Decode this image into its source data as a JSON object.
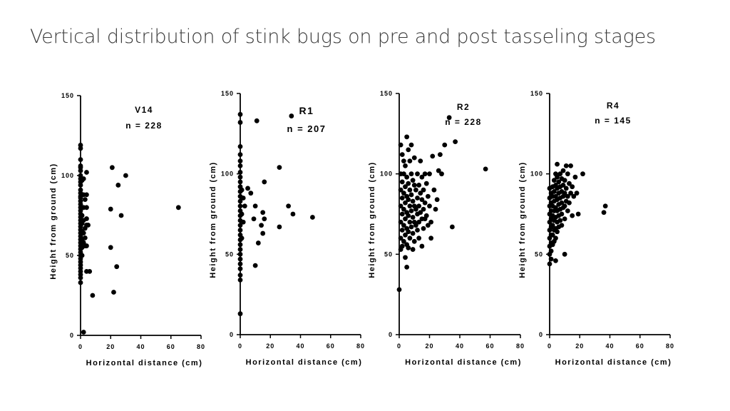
{
  "title": "Vertical distribution of stink bugs on pre and post tasseling stages",
  "chart_data": [
    {
      "type": "scatter",
      "label": "V14",
      "n_label": "n = 228",
      "xlabel": "Horizontal distance (cm)",
      "ylabel": "Height from ground (cm)",
      "xlim": [
        0,
        80
      ],
      "ylim": [
        0,
        150
      ],
      "xticks": [
        0,
        20,
        40,
        60,
        80
      ],
      "yticks": [
        0,
        50,
        100,
        150
      ],
      "grid": false,
      "legend": false,
      "color": "#000000",
      "points": [
        [
          0,
          119
        ],
        [
          0,
          117
        ],
        [
          0,
          110
        ],
        [
          0,
          106
        ],
        [
          0,
          105
        ],
        [
          0,
          103
        ],
        [
          0,
          100
        ],
        [
          0,
          98
        ],
        [
          0,
          96
        ],
        [
          0,
          94
        ],
        [
          0,
          91
        ],
        [
          0,
          89
        ],
        [
          0,
          87
        ],
        [
          0,
          86
        ],
        [
          0,
          84
        ],
        [
          0,
          82
        ],
        [
          0,
          80
        ],
        [
          0,
          78
        ],
        [
          0,
          76
        ],
        [
          0,
          74
        ],
        [
          0,
          72
        ],
        [
          0,
          70
        ],
        [
          0,
          68
        ],
        [
          0,
          66
        ],
        [
          0,
          64
        ],
        [
          0,
          62
        ],
        [
          0,
          60
        ],
        [
          0,
          58
        ],
        [
          0,
          56
        ],
        [
          0,
          54
        ],
        [
          0,
          52
        ],
        [
          0,
          50
        ],
        [
          0,
          48
        ],
        [
          0,
          46
        ],
        [
          0,
          44
        ],
        [
          0,
          42
        ],
        [
          0,
          40
        ],
        [
          0,
          38
        ],
        [
          0,
          36
        ],
        [
          0,
          33
        ],
        [
          1,
          97
        ],
        [
          1,
          75
        ],
        [
          1,
          70
        ],
        [
          1,
          65
        ],
        [
          1,
          60
        ],
        [
          1,
          55
        ],
        [
          1,
          50
        ],
        [
          2,
          98
        ],
        [
          2,
          88
        ],
        [
          2,
          80
        ],
        [
          2,
          72
        ],
        [
          2,
          64
        ],
        [
          2,
          58
        ],
        [
          3,
          85
        ],
        [
          3,
          67
        ],
        [
          3,
          61
        ],
        [
          3,
          56
        ],
        [
          4,
          102
        ],
        [
          4,
          88
        ],
        [
          4,
          80
        ],
        [
          4,
          73
        ],
        [
          4,
          69
        ],
        [
          4,
          56
        ],
        [
          4,
          40
        ],
        [
          5,
          69
        ],
        [
          6,
          40
        ],
        [
          8,
          25
        ],
        [
          2,
          2
        ],
        [
          20,
          79
        ],
        [
          20,
          55
        ],
        [
          21,
          105
        ],
        [
          22,
          27
        ],
        [
          24,
          43
        ],
        [
          25,
          94
        ],
        [
          27,
          75
        ],
        [
          30,
          100
        ],
        [
          65,
          80
        ]
      ]
    },
    {
      "type": "scatter",
      "label": "R1",
      "n_label": "n = 207",
      "xlabel": "Horizontal distance (cm)",
      "ylabel": "Height from ground (cm)",
      "xlim": [
        0,
        80
      ],
      "ylim": [
        0,
        150
      ],
      "xticks": [
        0,
        20,
        40,
        60,
        80
      ],
      "yticks": [
        0,
        50,
        100,
        150
      ],
      "grid": false,
      "legend": false,
      "color": "#000000",
      "points": [
        [
          0,
          137
        ],
        [
          0,
          132
        ],
        [
          0,
          117
        ],
        [
          0,
          112
        ],
        [
          0,
          108
        ],
        [
          0,
          105
        ],
        [
          0,
          101
        ],
        [
          0,
          98
        ],
        [
          0,
          95
        ],
        [
          0,
          92
        ],
        [
          0,
          89
        ],
        [
          0,
          86
        ],
        [
          0,
          83
        ],
        [
          0,
          80
        ],
        [
          0,
          77
        ],
        [
          0,
          74
        ],
        [
          0,
          71
        ],
        [
          0,
          68
        ],
        [
          0,
          65
        ],
        [
          0,
          62
        ],
        [
          0,
          59
        ],
        [
          0,
          56
        ],
        [
          0,
          53
        ],
        [
          0,
          50
        ],
        [
          0,
          47
        ],
        [
          0,
          44
        ],
        [
          0,
          41
        ],
        [
          0,
          37
        ],
        [
          0,
          34
        ],
        [
          0,
          13
        ],
        [
          1,
          90
        ],
        [
          1,
          75
        ],
        [
          1,
          60
        ],
        [
          2,
          85
        ],
        [
          2,
          70
        ],
        [
          3,
          80
        ],
        [
          5,
          91
        ],
        [
          7,
          88
        ],
        [
          9,
          72
        ],
        [
          10,
          80
        ],
        [
          10,
          43
        ],
        [
          11,
          133
        ],
        [
          12,
          57
        ],
        [
          14,
          68
        ],
        [
          15,
          63
        ],
        [
          15,
          76
        ],
        [
          16,
          95
        ],
        [
          16,
          72
        ],
        [
          26,
          104
        ],
        [
          26,
          67
        ],
        [
          32,
          80
        ],
        [
          34,
          136
        ],
        [
          35,
          75
        ],
        [
          48,
          73
        ]
      ]
    },
    {
      "type": "scatter",
      "label": "R2",
      "n_label": "n = 228",
      "xlabel": "Horizontal distance (cm)",
      "ylabel": "Height from ground (cm)",
      "xlim": [
        0,
        80
      ],
      "ylim": [
        0,
        150
      ],
      "xticks": [
        0,
        20,
        40,
        60,
        80
      ],
      "yticks": [
        0,
        50,
        100,
        150
      ],
      "grid": false,
      "legend": false,
      "color": "#000000",
      "points": [
        [
          0,
          28
        ],
        [
          1,
          118
        ],
        [
          1,
          100
        ],
        [
          1,
          90
        ],
        [
          1,
          80
        ],
        [
          1,
          70
        ],
        [
          1,
          60
        ],
        [
          1,
          53
        ],
        [
          2,
          112
        ],
        [
          2,
          95
        ],
        [
          2,
          85
        ],
        [
          2,
          75
        ],
        [
          2,
          65
        ],
        [
          2,
          55
        ],
        [
          3,
          108
        ],
        [
          3,
          100
        ],
        [
          3,
          88
        ],
        [
          3,
          78
        ],
        [
          3,
          68
        ],
        [
          3,
          58
        ],
        [
          4,
          105
        ],
        [
          4,
          92
        ],
        [
          4,
          82
        ],
        [
          4,
          72
        ],
        [
          4,
          62
        ],
        [
          4,
          48
        ],
        [
          5,
          123
        ],
        [
          5,
          98
        ],
        [
          5,
          86
        ],
        [
          5,
          76
        ],
        [
          5,
          66
        ],
        [
          5,
          56
        ],
        [
          5,
          42
        ],
        [
          6,
          115
        ],
        [
          6,
          94
        ],
        [
          6,
          84
        ],
        [
          6,
          74
        ],
        [
          6,
          64
        ],
        [
          6,
          54
        ],
        [
          7,
          108
        ],
        [
          7,
          90
        ],
        [
          7,
          80
        ],
        [
          7,
          70
        ],
        [
          7,
          60
        ],
        [
          8,
          118
        ],
        [
          8,
          100
        ],
        [
          8,
          87
        ],
        [
          8,
          77
        ],
        [
          8,
          67
        ],
        [
          9,
          96
        ],
        [
          9,
          83
        ],
        [
          9,
          73
        ],
        [
          9,
          63
        ],
        [
          9,
          53
        ],
        [
          10,
          110
        ],
        [
          10,
          93
        ],
        [
          10,
          80
        ],
        [
          10,
          70
        ],
        [
          10,
          58
        ],
        [
          11,
          90
        ],
        [
          11,
          78
        ],
        [
          11,
          68
        ],
        [
          12,
          100
        ],
        [
          12,
          85
        ],
        [
          12,
          75
        ],
        [
          12,
          65
        ],
        [
          13,
          93
        ],
        [
          13,
          80
        ],
        [
          13,
          70
        ],
        [
          13,
          60
        ],
        [
          14,
          108
        ],
        [
          14,
          88
        ],
        [
          14,
          76
        ],
        [
          15,
          98
        ],
        [
          15,
          84
        ],
        [
          15,
          72
        ],
        [
          15,
          55
        ],
        [
          16,
          90
        ],
        [
          16,
          78
        ],
        [
          16,
          66
        ],
        [
          17,
          100
        ],
        [
          17,
          82
        ],
        [
          17,
          72
        ],
        [
          18,
          94
        ],
        [
          18,
          74
        ],
        [
          19,
          86
        ],
        [
          19,
          68
        ],
        [
          20,
          100
        ],
        [
          20,
          80
        ],
        [
          21,
          70
        ],
        [
          21,
          60
        ],
        [
          22,
          111
        ],
        [
          23,
          90
        ],
        [
          24,
          78
        ],
        [
          25,
          84
        ],
        [
          26,
          102
        ],
        [
          27,
          112
        ],
        [
          28,
          100
        ],
        [
          30,
          118
        ],
        [
          33,
          135
        ],
        [
          35,
          67
        ],
        [
          37,
          120
        ],
        [
          57,
          103
        ]
      ]
    },
    {
      "type": "scatter",
      "label": "R4",
      "n_label": "n = 145",
      "xlabel": "Horizontal distance (cm)",
      "ylabel": "Height from ground (cm)",
      "xlim": [
        0,
        80
      ],
      "ylim": [
        0,
        150
      ],
      "xticks": [
        0,
        20,
        40,
        60,
        80
      ],
      "yticks": [
        0,
        50,
        100,
        150
      ],
      "grid": false,
      "legend": false,
      "color": "#000000",
      "points": [
        [
          0,
          91
        ],
        [
          0,
          85
        ],
        [
          0,
          80
        ],
        [
          0,
          75
        ],
        [
          0,
          70
        ],
        [
          0,
          65
        ],
        [
          0,
          60
        ],
        [
          0,
          55
        ],
        [
          0,
          50
        ],
        [
          0,
          44
        ],
        [
          1,
          88
        ],
        [
          1,
          82
        ],
        [
          1,
          77
        ],
        [
          1,
          72
        ],
        [
          1,
          67
        ],
        [
          1,
          62
        ],
        [
          1,
          57
        ],
        [
          1,
          52
        ],
        [
          1,
          47
        ],
        [
          2,
          92
        ],
        [
          2,
          86
        ],
        [
          2,
          80
        ],
        [
          2,
          74
        ],
        [
          2,
          68
        ],
        [
          2,
          62
        ],
        [
          2,
          56
        ],
        [
          3,
          96
        ],
        [
          3,
          89
        ],
        [
          3,
          83
        ],
        [
          3,
          77
        ],
        [
          3,
          71
        ],
        [
          3,
          65
        ],
        [
          3,
          58
        ],
        [
          4,
          100
        ],
        [
          4,
          93
        ],
        [
          4,
          86
        ],
        [
          4,
          79
        ],
        [
          4,
          73
        ],
        [
          4,
          66
        ],
        [
          4,
          60
        ],
        [
          4,
          46
        ],
        [
          5,
          106
        ],
        [
          5,
          98
        ],
        [
          5,
          91
        ],
        [
          5,
          84
        ],
        [
          5,
          77
        ],
        [
          5,
          70
        ],
        [
          5,
          64
        ],
        [
          6,
          95
        ],
        [
          6,
          88
        ],
        [
          6,
          81
        ],
        [
          6,
          74
        ],
        [
          6,
          67
        ],
        [
          7,
          100
        ],
        [
          7,
          92
        ],
        [
          7,
          85
        ],
        [
          7,
          78
        ],
        [
          7,
          71
        ],
        [
          8,
          97
        ],
        [
          8,
          89
        ],
        [
          8,
          82
        ],
        [
          8,
          75
        ],
        [
          8,
          68
        ],
        [
          9,
          102
        ],
        [
          9,
          93
        ],
        [
          9,
          86
        ],
        [
          9,
          79
        ],
        [
          10,
          96
        ],
        [
          10,
          88
        ],
        [
          10,
          80
        ],
        [
          10,
          72
        ],
        [
          10,
          50
        ],
        [
          11,
          105
        ],
        [
          11,
          91
        ],
        [
          11,
          83
        ],
        [
          12,
          100
        ],
        [
          12,
          86
        ],
        [
          12,
          77
        ],
        [
          13,
          94
        ],
        [
          13,
          82
        ],
        [
          14,
          105
        ],
        [
          14,
          88
        ],
        [
          15,
          92
        ],
        [
          15,
          74
        ],
        [
          16,
          86
        ],
        [
          17,
          98
        ],
        [
          18,
          88
        ],
        [
          19,
          75
        ],
        [
          22,
          100
        ],
        [
          36,
          76
        ],
        [
          37,
          80
        ]
      ]
    }
  ]
}
